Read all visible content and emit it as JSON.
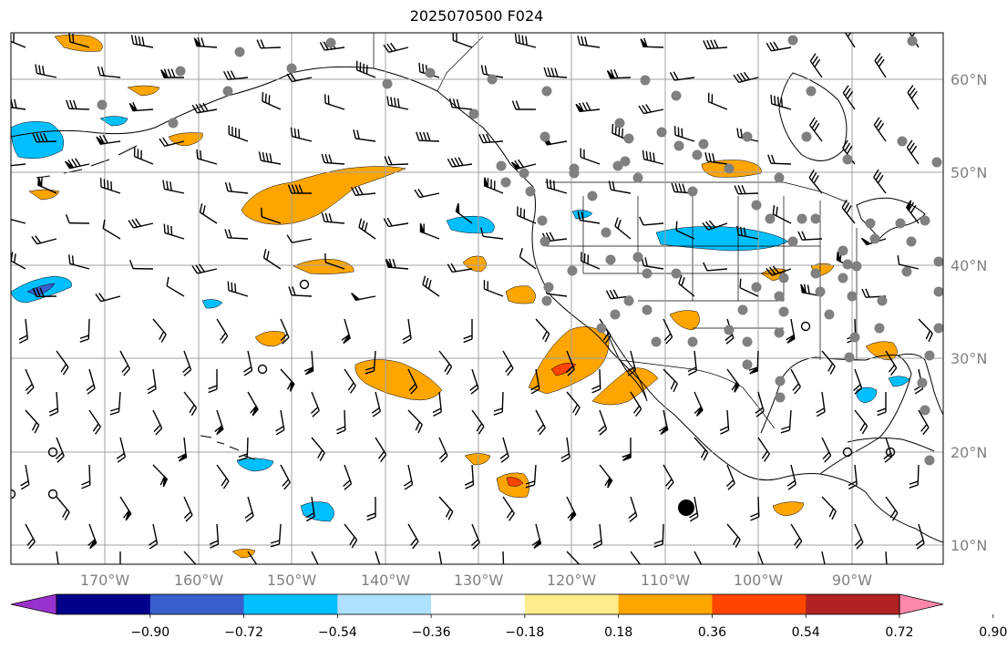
{
  "title": "2025070500 F024",
  "lat_labels": [
    "60°N",
    "50°N",
    "40°N",
    "30°N",
    "20°N",
    "10°N"
  ],
  "lon_labels": [
    "170°W",
    "160°W",
    "150°W",
    "140°W",
    "130°W",
    "120°W",
    "110°W",
    "100°W",
    "90°W"
  ],
  "colorbar": {
    "tick_labels": [
      "−0.90",
      "−0.72",
      "−0.54",
      "−0.36",
      "−0.18",
      "0.18",
      "0.36",
      "0.54",
      "0.72",
      "0.90"
    ],
    "colors": [
      "#9932cc",
      "#00008b",
      "#3a5fcd",
      "#00bfff",
      "#b0e2ff",
      "#ffffff",
      "#ffec8b",
      "#ffa500",
      "#ff4500",
      "#b22222",
      "#ff88aa"
    ]
  },
  "palette": {
    "grid": "#a0a0a0",
    "label": "#808080",
    "coast": "#000000",
    "station": "#808080"
  }
}
